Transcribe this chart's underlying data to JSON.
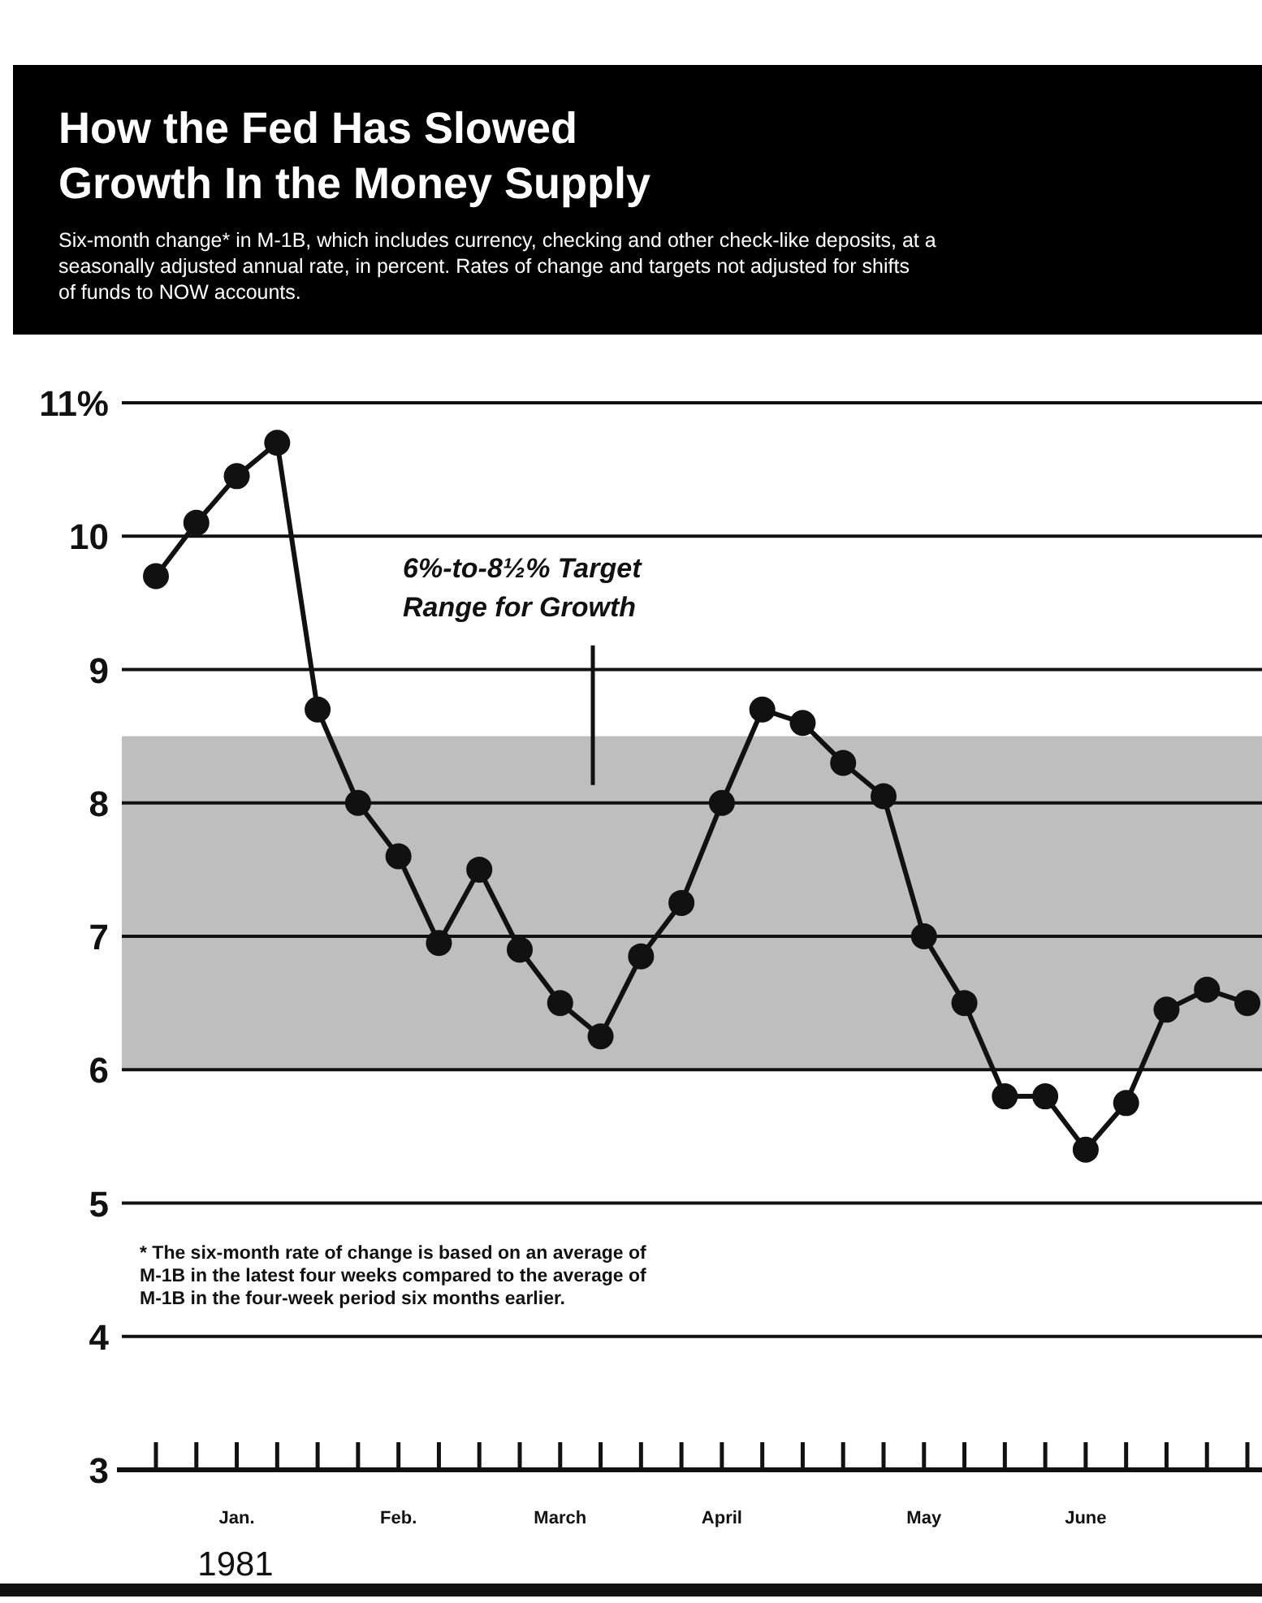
{
  "chart_data": {
    "type": "line",
    "title": "How the Fed Has Slowed Growth In the Money Supply",
    "subtitle": "Six-month change* in M-1B, which includes currency, checking and other check-like deposits, at a seasonally adjusted annual rate, in percent. Rates of change and targets not adjusted for shifts of funds to NOW accounts.",
    "xlabel": "1981",
    "categories": [
      null,
      null,
      "Jan.",
      null,
      null,
      null,
      "Feb.",
      null,
      null,
      null,
      "March",
      null,
      null,
      null,
      "April",
      null,
      null,
      null,
      null,
      "May",
      null,
      null,
      null,
      "June",
      null,
      null,
      null,
      null
    ],
    "series": [
      {
        "color": "#111111",
        "values": [
          9.7,
          10.1,
          10.45,
          10.7,
          8.7,
          8.0,
          7.6,
          6.95,
          7.5,
          6.9,
          6.5,
          6.25,
          6.85,
          7.25,
          8.0,
          8.7,
          8.6,
          8.3,
          8.05,
          7.0,
          6.5,
          5.8,
          5.8,
          5.4,
          5.75,
          6.45,
          6.6,
          6.5
        ]
      }
    ],
    "ylim": [
      3,
      11
    ],
    "yticks": [
      3,
      4,
      5,
      6,
      7,
      8,
      9,
      10,
      {
        "value": 11,
        "label": "11%"
      }
    ],
    "grid": "y",
    "marker": "circle",
    "line_style": "solid",
    "bands": [
      {
        "axis": "y",
        "from": 6,
        "to": 8.5,
        "label": "6%-to-8½% Target Range for Growth",
        "color": "#a8a8a8"
      }
    ],
    "annotations": [
      "* The six-month rate of change is based on an average of M-1B in the latest four weeks compared to the average of M-1B in the four-week period six months earlier."
    ]
  }
}
